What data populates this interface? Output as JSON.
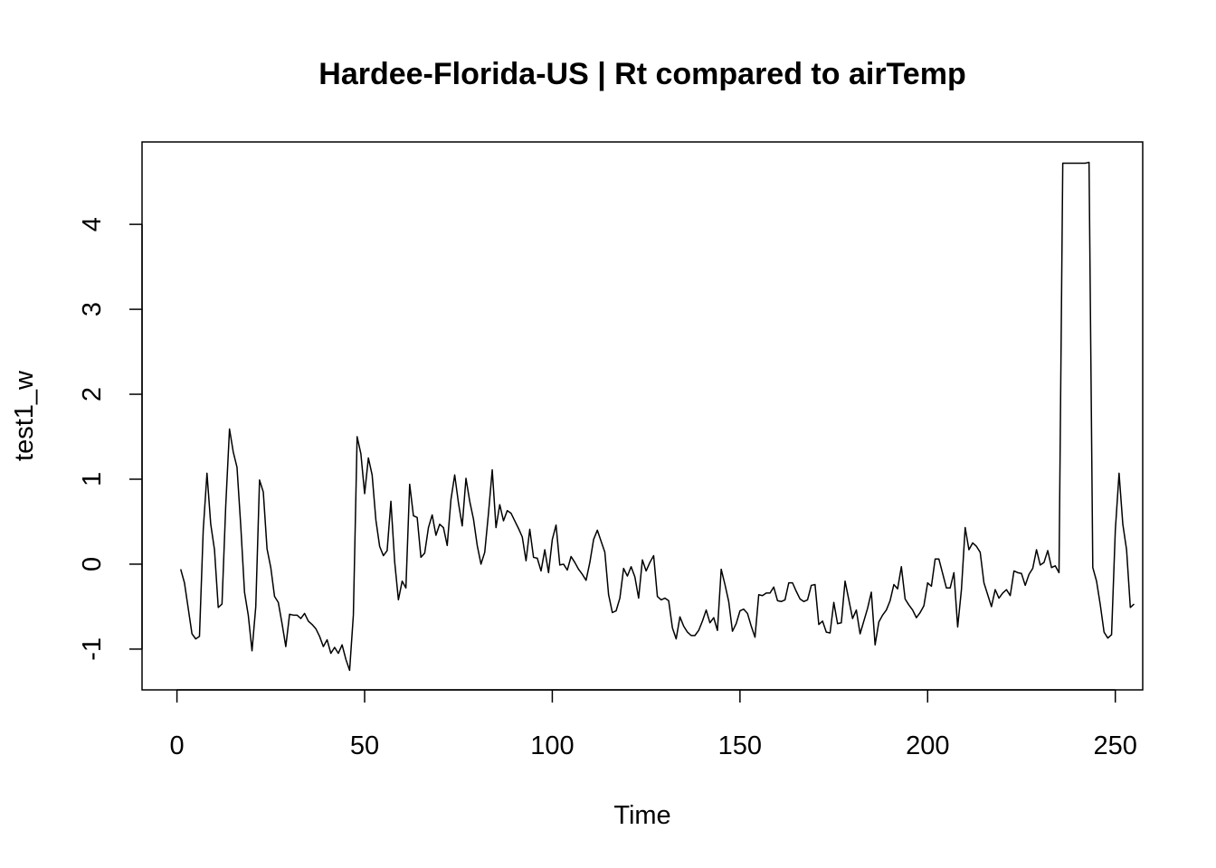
{
  "chart_data": {
    "type": "line",
    "title": "Hardee-Florida-US | Rt compared to airTemp",
    "xlabel": "Time",
    "ylabel": "test1_w",
    "xlim": [
      -9.3,
      257.3
    ],
    "ylim": [
      -1.48,
      4.97
    ],
    "xticks": [
      0,
      50,
      100,
      150,
      200,
      250
    ],
    "yticks": [
      -1,
      0,
      1,
      2,
      3,
      4
    ],
    "grid": false,
    "legend": "none",
    "line_color": "#000000",
    "series": [
      {
        "values": [
          -0.06,
          -0.22,
          -0.52,
          -0.82,
          -0.88,
          -0.85,
          0.4,
          1.07,
          0.47,
          0.17,
          -0.51,
          -0.47,
          0.69,
          1.59,
          1.32,
          1.14,
          0.45,
          -0.33,
          -0.6,
          -1.02,
          -0.5,
          0.99,
          0.85,
          0.18,
          -0.04,
          -0.38,
          -0.45,
          -0.7,
          -0.97,
          -0.59,
          -0.6,
          -0.6,
          -0.64,
          -0.58,
          -0.67,
          -0.71,
          -0.76,
          -0.85,
          -0.97,
          -0.89,
          -1.05,
          -0.98,
          -1.05,
          -0.95,
          -1.12,
          -1.25,
          -0.6,
          1.5,
          1.3,
          0.83,
          1.25,
          1.05,
          0.52,
          0.21,
          0.1,
          0.16,
          0.74,
          0.03,
          -0.42,
          -0.2,
          -0.28,
          0.94,
          0.57,
          0.55,
          0.08,
          0.13,
          0.43,
          0.58,
          0.34,
          0.47,
          0.43,
          0.22,
          0.76,
          1.05,
          0.72,
          0.45,
          1.01,
          0.74,
          0.53,
          0.22,
          0.0,
          0.14,
          0.6,
          1.11,
          0.43,
          0.7,
          0.51,
          0.63,
          0.6,
          0.51,
          0.42,
          0.32,
          0.04,
          0.41,
          0.08,
          0.07,
          -0.08,
          0.17,
          -0.1,
          0.29,
          0.46,
          -0.01,
          0.0,
          -0.07,
          0.09,
          0.02,
          -0.06,
          -0.12,
          -0.19,
          0.02,
          0.29,
          0.4,
          0.27,
          0.14,
          -0.36,
          -0.57,
          -0.55,
          -0.4,
          -0.05,
          -0.14,
          -0.03,
          -0.15,
          -0.4,
          0.05,
          -0.08,
          0.02,
          0.1,
          -0.38,
          -0.42,
          -0.4,
          -0.43,
          -0.75,
          -0.88,
          -0.62,
          -0.73,
          -0.8,
          -0.84,
          -0.84,
          -0.78,
          -0.67,
          -0.54,
          -0.69,
          -0.63,
          -0.78,
          -0.06,
          -0.24,
          -0.44,
          -0.79,
          -0.7,
          -0.55,
          -0.53,
          -0.58,
          -0.73,
          -0.86,
          -0.36,
          -0.37,
          -0.34,
          -0.34,
          -0.27,
          -0.43,
          -0.44,
          -0.42,
          -0.22,
          -0.22,
          -0.32,
          -0.41,
          -0.44,
          -0.42,
          -0.25,
          -0.24,
          -0.71,
          -0.67,
          -0.8,
          -0.81,
          -0.45,
          -0.7,
          -0.69,
          -0.2,
          -0.42,
          -0.64,
          -0.54,
          -0.82,
          -0.67,
          -0.52,
          -0.33,
          -0.95,
          -0.68,
          -0.6,
          -0.54,
          -0.43,
          -0.24,
          -0.29,
          -0.03,
          -0.41,
          -0.48,
          -0.54,
          -0.63,
          -0.57,
          -0.49,
          -0.22,
          -0.26,
          0.06,
          0.06,
          -0.11,
          -0.28,
          -0.28,
          -0.1,
          -0.74,
          -0.3,
          0.43,
          0.17,
          0.25,
          0.21,
          0.14,
          -0.22,
          -0.36,
          -0.5,
          -0.3,
          -0.4,
          -0.34,
          -0.3,
          -0.37,
          -0.08,
          -0.1,
          -0.11,
          -0.25,
          -0.12,
          -0.05,
          0.17,
          -0.01,
          0.02,
          0.16,
          -0.04,
          -0.02,
          -0.1,
          4.72,
          4.72,
          4.72,
          4.72,
          4.72,
          4.72,
          4.72,
          4.73,
          -0.04,
          -0.2,
          -0.48,
          -0.8,
          -0.87,
          -0.83,
          0.4,
          1.07,
          0.47,
          0.17,
          -0.51,
          -0.47
        ]
      }
    ]
  }
}
